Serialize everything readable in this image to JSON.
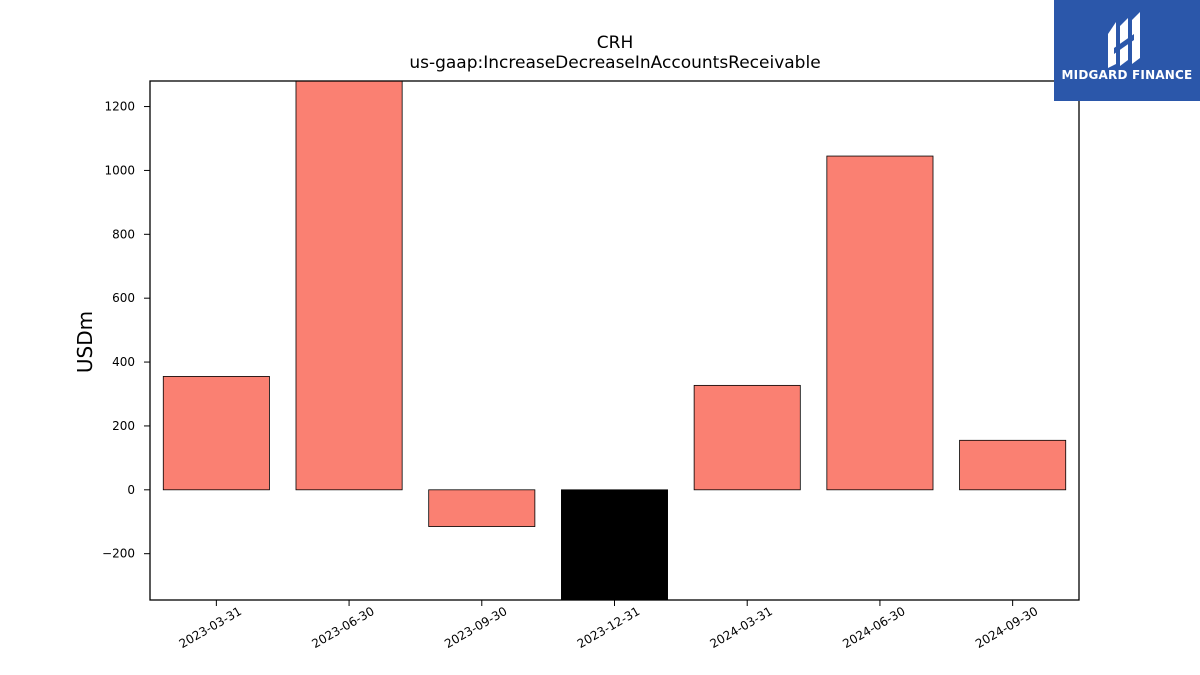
{
  "chart_data": {
    "type": "bar",
    "title": "CRH",
    "subtitle": "us-gaap:IncreaseDecreaseInAccountsReceivable",
    "xlabel": "",
    "ylabel": "USDm",
    "categories": [
      "2023-03-31",
      "2023-06-30",
      "2023-09-30",
      "2023-12-31",
      "2024-03-31",
      "2024-06-30",
      "2024-09-30"
    ],
    "values": [
      355,
      1285,
      -115,
      -345,
      327,
      1045,
      155
    ],
    "bar_colors": [
      "#fa8072",
      "#fa8072",
      "#fa8072",
      "#000000",
      "#fa8072",
      "#fa8072",
      "#fa8072"
    ],
    "yticks": [
      -200,
      0,
      200,
      400,
      600,
      800,
      1000,
      1200
    ],
    "ytick_labels": [
      "−200",
      "0",
      "200",
      "400",
      "600",
      "800",
      "1000",
      "1200"
    ],
    "ylim": [
      -345,
      1280
    ],
    "grid": false,
    "legend": "none"
  },
  "logo": {
    "text": "MIDGARD FINANCE",
    "icon": "midgard-logo-icon",
    "color": "#2b57aa"
  }
}
